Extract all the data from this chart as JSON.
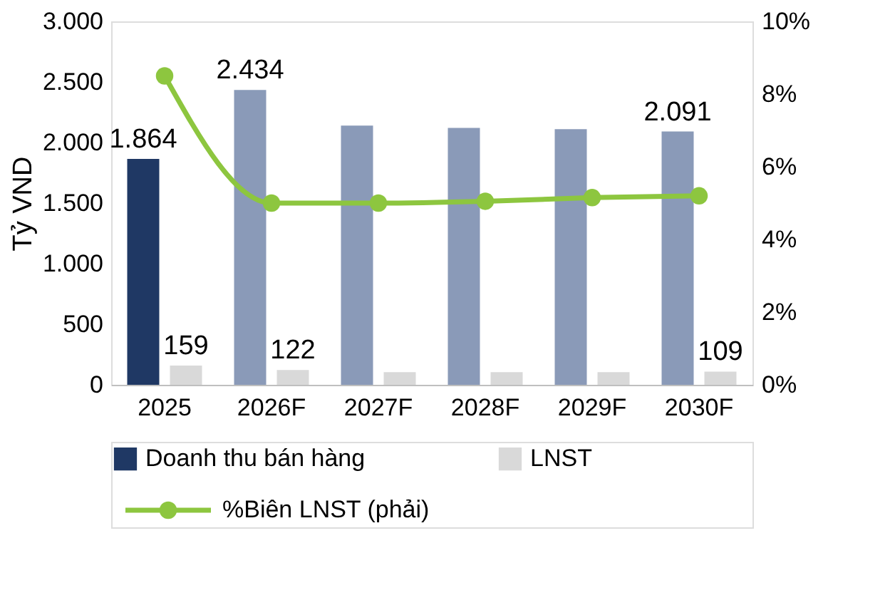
{
  "chart_data": {
    "type": "bar",
    "categories": [
      "2025",
      "2026F",
      "2027F",
      "2028F",
      "2029F",
      "2030F"
    ],
    "ylabel": "Tỷ VND",
    "ylim": [
      0,
      3000
    ],
    "yticks": [
      0,
      500,
      {
        "value": 1000,
        "label": "1.000"
      },
      {
        "value": 1500,
        "label": "1.500"
      },
      {
        "value": 2000,
        "label": "2.000"
      },
      {
        "value": 2500,
        "label": "2.500"
      },
      {
        "value": 3000,
        "label": "3.000"
      }
    ],
    "y2lim": [
      0,
      10
    ],
    "y2ticks": [
      {
        "value": 0,
        "label": "0%"
      },
      {
        "value": 2,
        "label": "2%"
      },
      {
        "value": 4,
        "label": "4%"
      },
      {
        "value": 6,
        "label": "6%"
      },
      {
        "value": 8,
        "label": "8%"
      },
      {
        "value": 10,
        "label": "10%"
      }
    ],
    "series": [
      {
        "name": "Doanh thu bán hàng",
        "color": "#1f3864",
        "colors": [
          "#1f3864",
          "#8a9ab8",
          "#8a9ab8",
          "#8a9ab8",
          "#8a9ab8",
          "#8a9ab8"
        ],
        "values": [
          1864,
          2434,
          2140,
          2120,
          2110,
          2091
        ],
        "value_labels": [
          "1.864",
          "2.434",
          null,
          null,
          null,
          "2.091"
        ]
      },
      {
        "name": "LNST",
        "color": "#d9d9d9",
        "values": [
          159,
          122,
          105,
          105,
          105,
          109
        ],
        "value_labels": [
          "159",
          "122",
          null,
          null,
          null,
          "109"
        ]
      },
      {
        "name": "%Biên LNST (phải)",
        "type": "line",
        "axis": "y2",
        "color": "#8dc63f",
        "marker": "circle",
        "values": [
          8.5,
          5.0,
          5.0,
          5.05,
          5.15,
          5.2
        ]
      }
    ],
    "grid": false,
    "legend": "bottom"
  }
}
